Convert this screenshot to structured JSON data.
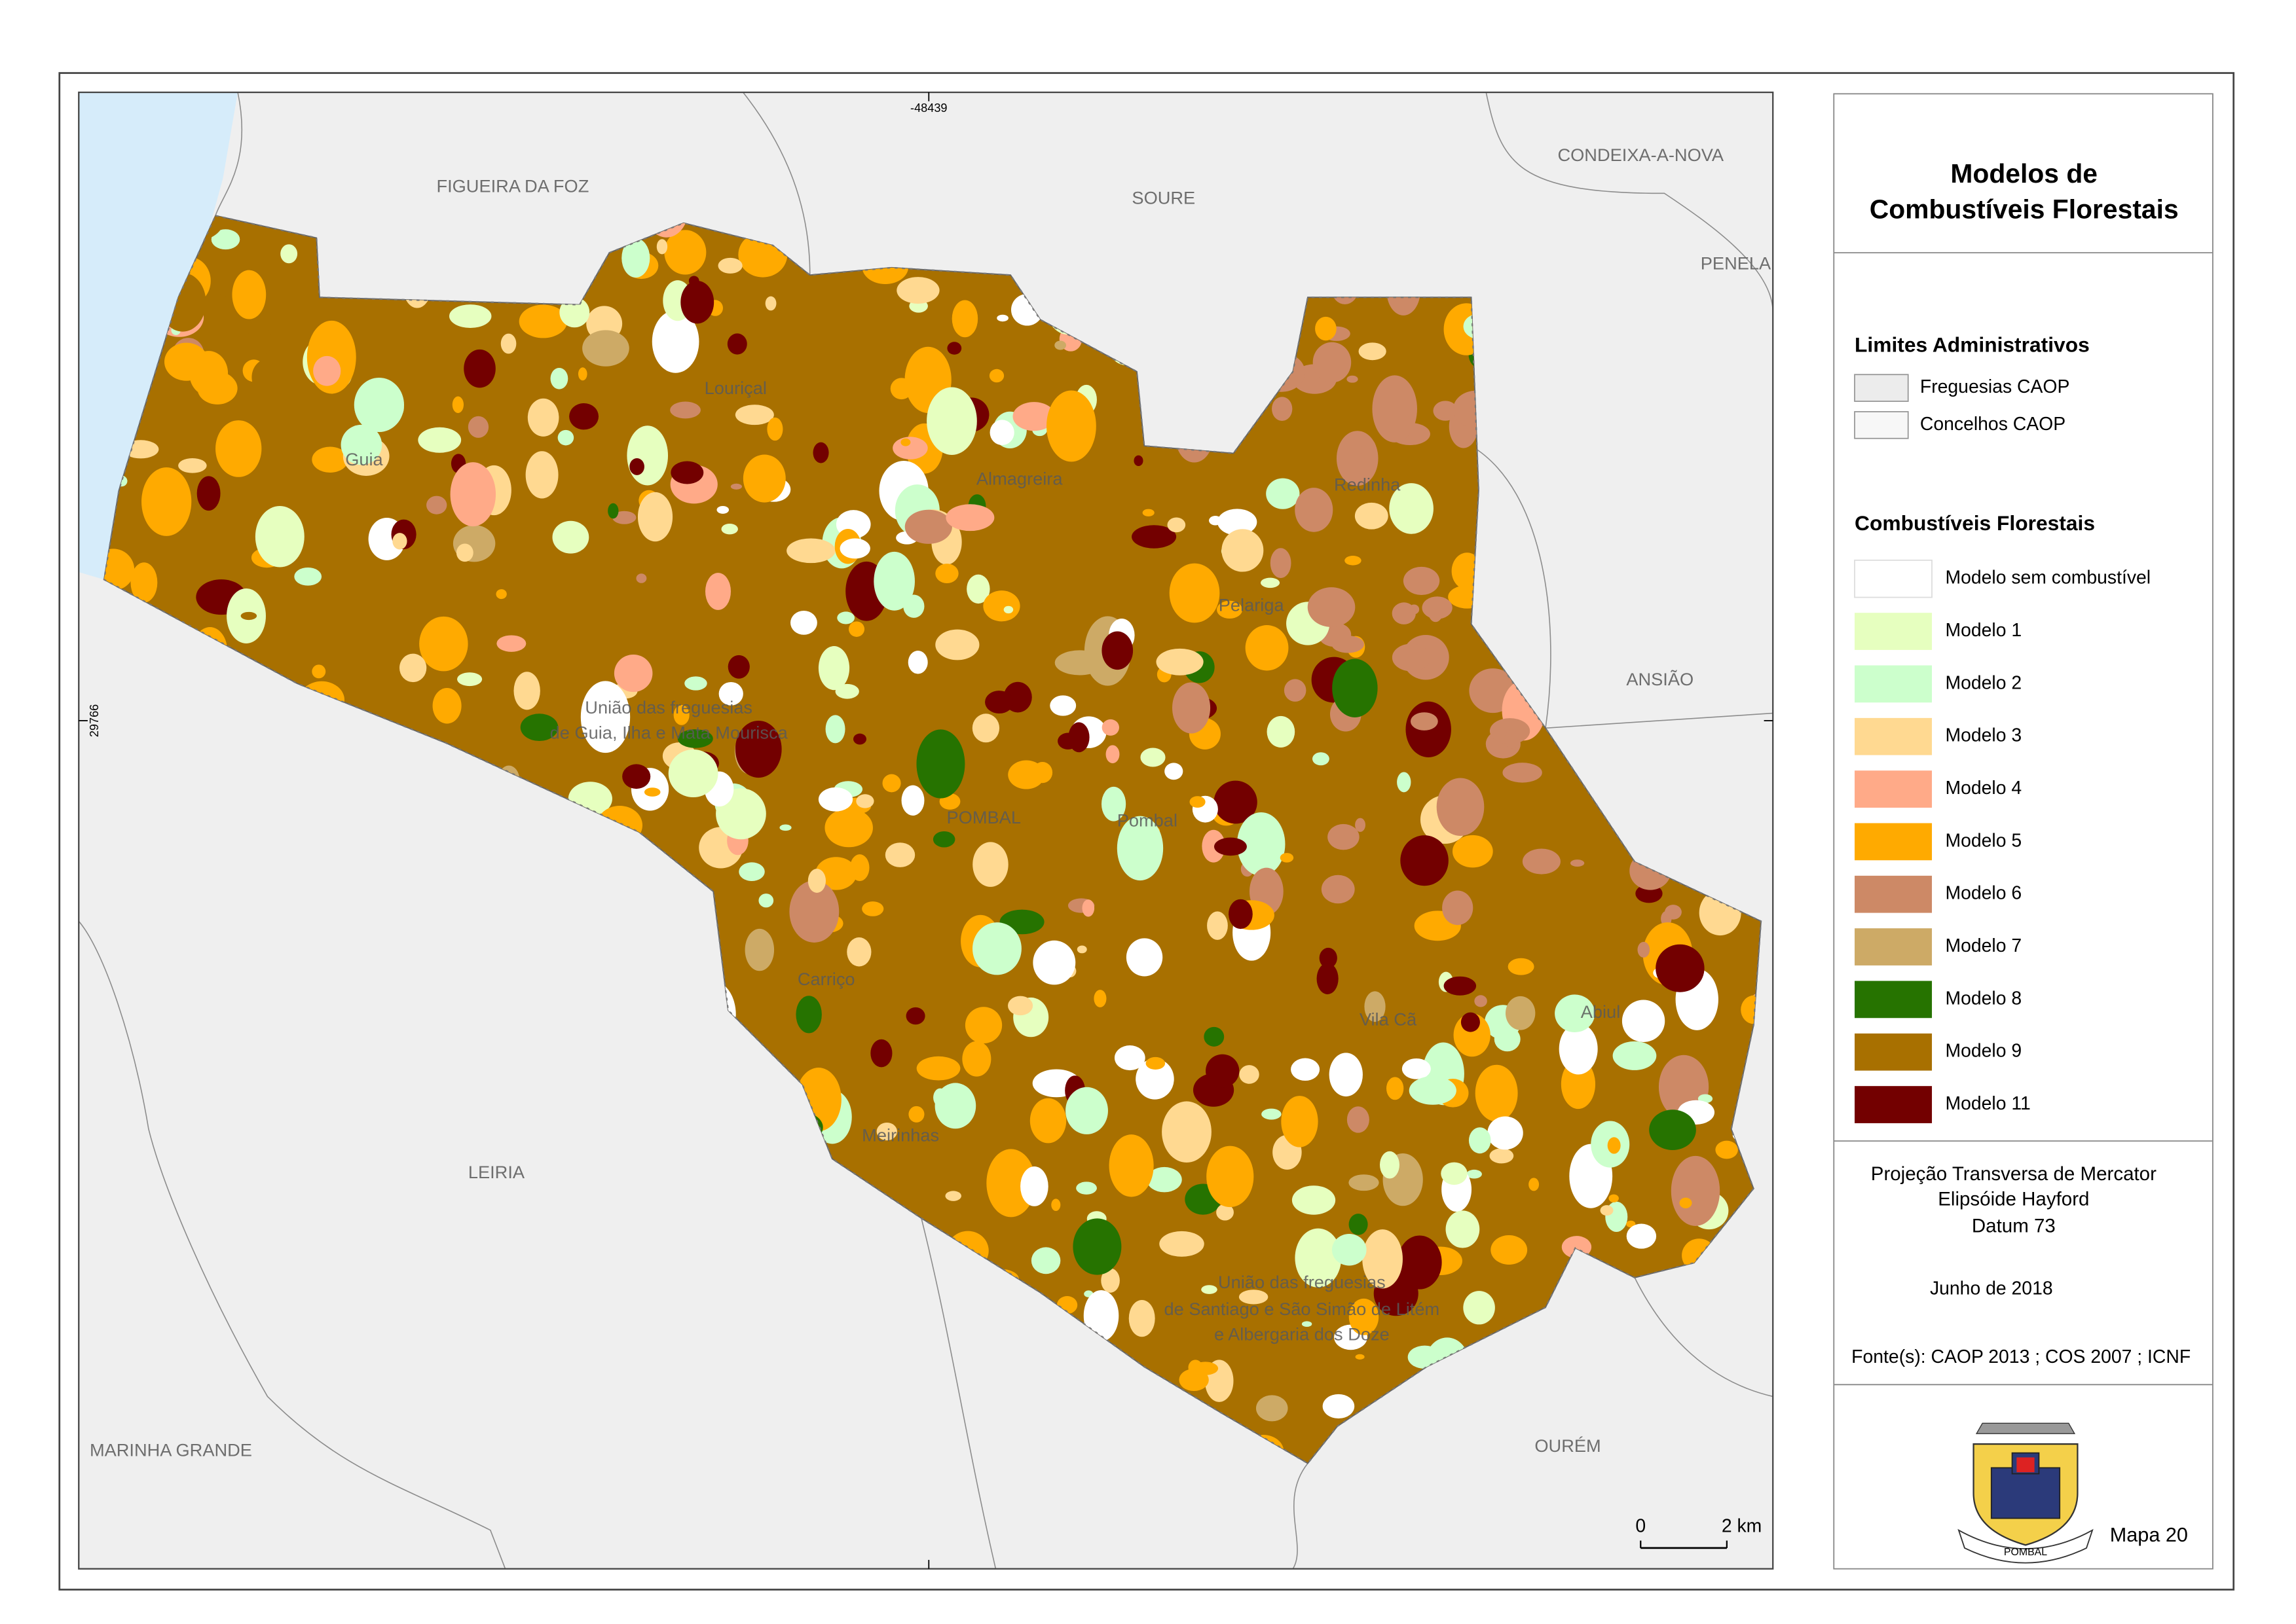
{
  "title": [
    "Modelos de",
    "Combustíveis Florestais"
  ],
  "admin_legend": {
    "heading": "Limites Administrativos",
    "items": [
      {
        "label": "Freguesias CAOP",
        "color": "#ececec"
      },
      {
        "label": "Concelhos CAOP",
        "color": "#f7f7f7"
      }
    ]
  },
  "fuel_legend": {
    "heading": "Combustíveis Florestais",
    "items": [
      {
        "label": "Modelo sem combustível",
        "color": "#ffffff"
      },
      {
        "label": "Modelo 1",
        "color": "#e6ffbf"
      },
      {
        "label": "Modelo 2",
        "color": "#ccffcc"
      },
      {
        "label": "Modelo 3",
        "color": "#ffd991"
      },
      {
        "label": "Modelo 4",
        "color": "#ffaa88"
      },
      {
        "label": "Modelo 5",
        "color": "#ffaa00"
      },
      {
        "label": "Modelo 6",
        "color": "#cd8966"
      },
      {
        "label": "Modelo 7",
        "color": "#cdaa66"
      },
      {
        "label": "Modelo 8",
        "color": "#267300"
      },
      {
        "label": "Modelo 9",
        "color": "#a87000"
      },
      {
        "label": "Modelo 11",
        "color": "#730000"
      }
    ]
  },
  "projection": [
    "Projeção Transversa de Mercator",
    "Elipsóide Hayford",
    "Datum 73"
  ],
  "date": "Junho de 2018",
  "source": "Fonte(s): CAOP 2013 ; COS 2007 ; ICNF",
  "map_number": "Mapa 20",
  "logo_text": "POMBAL",
  "map": {
    "coordinates": {
      "x": "-48439",
      "y": "29766"
    },
    "scale": [
      "0",
      "2 km"
    ],
    "municipalities": [
      "FIGUEIRA DA FOZ",
      "SOURE",
      "CONDEIXA-A-NOVA",
      "PENELA",
      "ANSIÃO",
      "LEIRIA",
      "MARINHA GRANDE",
      "OURÉM"
    ],
    "parishes": [
      "Guia",
      "Louriçal",
      "Almagreira",
      "Redinha",
      "Pelariga",
      "União das freguesias",
      "de Guia, Ilha e Mata Mourisca",
      "POMBAL",
      "Pombal",
      "Carriço",
      "Vila Cã",
      "Abiul",
      "Meirinhas",
      "União das freguesias",
      "de Santiago e São Simão de Litém",
      "e Albergaria dos Doze"
    ]
  }
}
